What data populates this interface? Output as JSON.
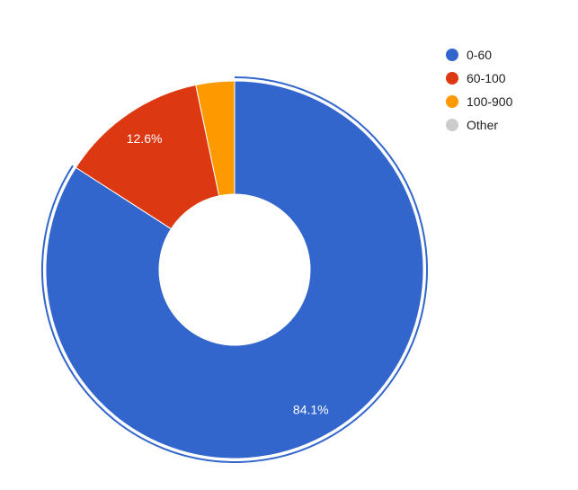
{
  "chart_data": {
    "type": "pie",
    "donut": true,
    "title": "",
    "slices": [
      {
        "label": "0-60",
        "value": 84.1,
        "color": "#3366cc",
        "display_label": "84.1%",
        "highlighted": true
      },
      {
        "label": "60-100",
        "value": 12.6,
        "color": "#dc3912",
        "display_label": "12.6%",
        "highlighted": false
      },
      {
        "label": "100-900",
        "value": 3.3,
        "color": "#ff9900",
        "display_label": "",
        "highlighted": false
      },
      {
        "label": "Other",
        "value": 0,
        "color": "#cccccc",
        "display_label": "",
        "highlighted": false
      }
    ],
    "legend_position": "top-right"
  }
}
